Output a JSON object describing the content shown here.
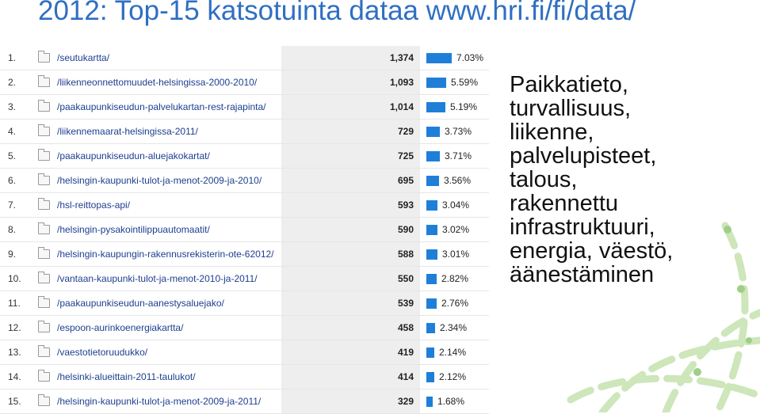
{
  "slide": {
    "title": "2012: Top-15 katsotuinta dataa www.hri.fi/fi/data/",
    "topics": [
      "Paikkatieto,",
      "turvallisuus,",
      "liikenne,",
      "palvelupisteet,",
      "talous,",
      "rakennettu",
      "infrastruktuuri,",
      "energia, väestö,",
      "äänestäminen"
    ]
  },
  "table": {
    "rows": [
      {
        "rank": "1.",
        "page": "/seutukartta/",
        "views": "1,374",
        "pct": "7.03%",
        "share": 7.03
      },
      {
        "rank": "2.",
        "page": "/liikenneonnettomuudet-helsingissa-2000-2010/",
        "views": "1,093",
        "pct": "5.59%",
        "share": 5.59
      },
      {
        "rank": "3.",
        "page": "/paakaupunkiseudun-palvelukartan-rest-rajapinta/",
        "views": "1,014",
        "pct": "5.19%",
        "share": 5.19
      },
      {
        "rank": "4.",
        "page": "/liikennemaarat-helsingissa-2011/",
        "views": "729",
        "pct": "3.73%",
        "share": 3.73
      },
      {
        "rank": "5.",
        "page": "/paakaupunkiseudun-aluejakokartat/",
        "views": "725",
        "pct": "3.71%",
        "share": 3.71
      },
      {
        "rank": "6.",
        "page": "/helsingin-kaupunki-tulot-ja-menot-2009-ja-2010/",
        "views": "695",
        "pct": "3.56%",
        "share": 3.56
      },
      {
        "rank": "7.",
        "page": "/hsl-reittopas-api/",
        "views": "593",
        "pct": "3.04%",
        "share": 3.04
      },
      {
        "rank": "8.",
        "page": "/helsingin-pysakointilippuautomaatit/",
        "views": "590",
        "pct": "3.02%",
        "share": 3.02
      },
      {
        "rank": "9.",
        "page": "/helsingin-kaupungin-rakennusrekisterin-ote-62012/",
        "views": "588",
        "pct": "3.01%",
        "share": 3.01
      },
      {
        "rank": "10.",
        "page": "/vantaan-kaupunki-tulot-ja-menot-2010-ja-2011/",
        "views": "550",
        "pct": "2.82%",
        "share": 2.82
      },
      {
        "rank": "11.",
        "page": "/paakaupunkiseudun-aanestysaluejako/",
        "views": "539",
        "pct": "2.76%",
        "share": 2.76
      },
      {
        "rank": "12.",
        "page": "/espoon-aurinkoenergiakartta/",
        "views": "458",
        "pct": "2.34%",
        "share": 2.34
      },
      {
        "rank": "13.",
        "page": "/vaestotietoruudukko/",
        "views": "419",
        "pct": "2.14%",
        "share": 2.14
      },
      {
        "rank": "14.",
        "page": "/helsinki-alueittain-2011-taulukot/",
        "views": "414",
        "pct": "2.12%",
        "share": 2.12
      },
      {
        "rank": "15.",
        "page": "/helsingin-kaupunki-tulot-ja-menot-2009-ja-2011/",
        "views": "329",
        "pct": "1.68%",
        "share": 1.68
      }
    ]
  },
  "colors": {
    "title": "#2f6fc2",
    "bar": "#1f7fd8",
    "views_bg": "#eeeeee",
    "link": "#1d3f8f",
    "decoration": "#c8e3b4"
  }
}
